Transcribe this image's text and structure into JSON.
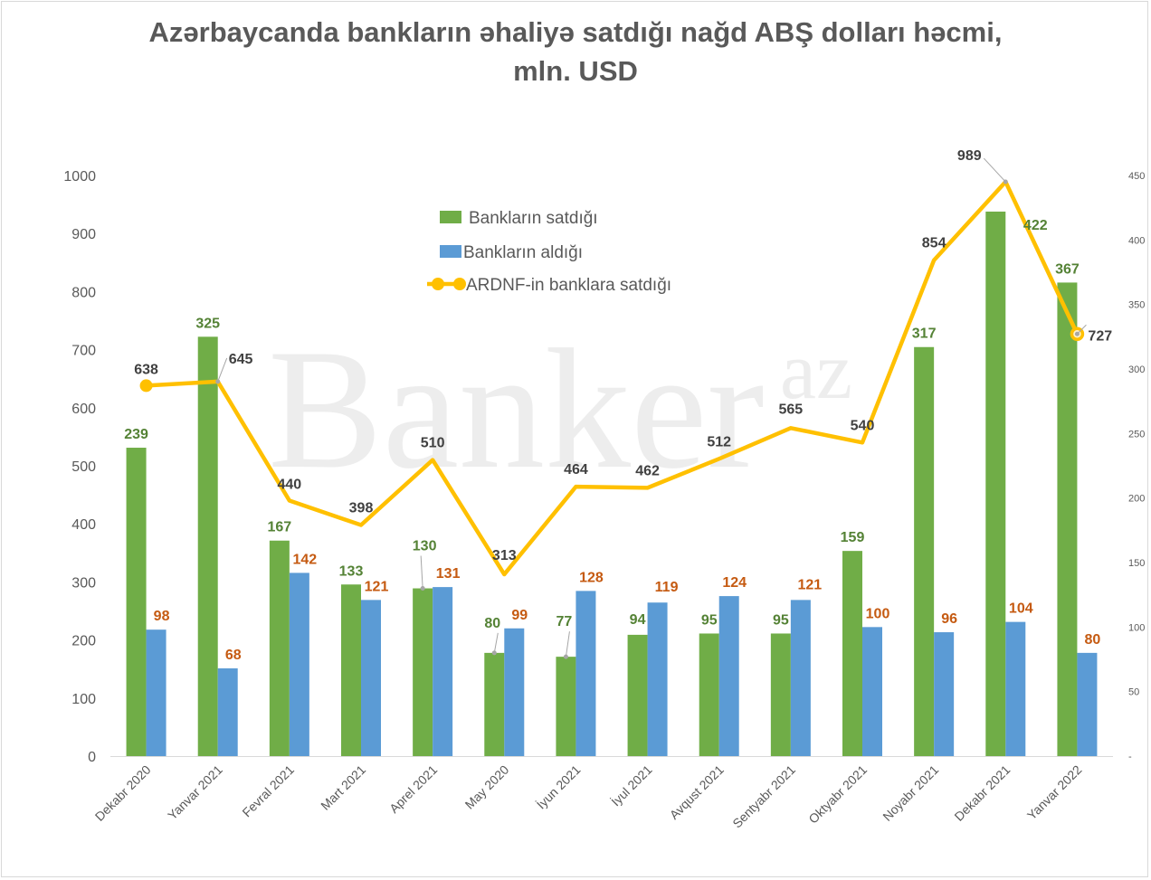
{
  "title": {
    "line1": "Azərbaycanda bankların əhaliyə satdığı nağd ABŞ dolları həcmi,",
    "line2": "mln. USD"
  },
  "watermark": {
    "main": "Banker",
    "sup": "az"
  },
  "colors": {
    "sold": "#70ad47",
    "bought": "#5b9bd5",
    "ardnf": "#ffc000",
    "sold_label": "#548235",
    "bought_label": "#c55a11",
    "ardnf_label": "#404040"
  },
  "chart_data": {
    "type": "bar",
    "categories": [
      "Dekabr 2020",
      "Yanvar 2021",
      "Fevral  2021",
      "Mart  2021",
      "Aprel  2021",
      "May 2020",
      "İyun  2021",
      "İyul  2021",
      "Avqust  2021",
      "Sentyabr  2021",
      "Oktyabr  2021",
      "Noyabr 2021",
      "Dekabr  2021",
      "Yanvar 2022"
    ],
    "series": [
      {
        "name": "Bankların satdığı",
        "type": "bar",
        "axis": "right",
        "values": [
          239,
          325,
          167,
          133,
          130,
          80,
          77,
          94,
          95,
          95,
          159,
          317,
          422,
          367
        ]
      },
      {
        "name": "Bankların aldığı",
        "type": "bar",
        "axis": "right",
        "values": [
          98,
          68,
          142,
          121,
          131,
          99,
          128,
          119,
          124,
          121,
          100,
          96,
          104,
          80
        ]
      },
      {
        "name": "ARDNF-in  banklara satdığı",
        "type": "line",
        "axis": "left",
        "values": [
          638,
          645,
          440,
          398,
          510,
          313,
          464,
          462,
          512,
          565,
          540,
          854,
          989,
          727
        ]
      }
    ],
    "y_left": {
      "min": 0,
      "max": 1000,
      "ticks": [
        "0",
        "100",
        "200",
        "300",
        "400",
        "500",
        "600",
        "700",
        "800",
        "900",
        "1000"
      ]
    },
    "y_right": {
      "min": 0,
      "max": 450,
      "ticks": [
        "-",
        "50",
        "100",
        "150",
        "200",
        "250",
        "300",
        "350",
        "400",
        "450"
      ]
    },
    "legend_position": "top-center",
    "grid": false
  }
}
